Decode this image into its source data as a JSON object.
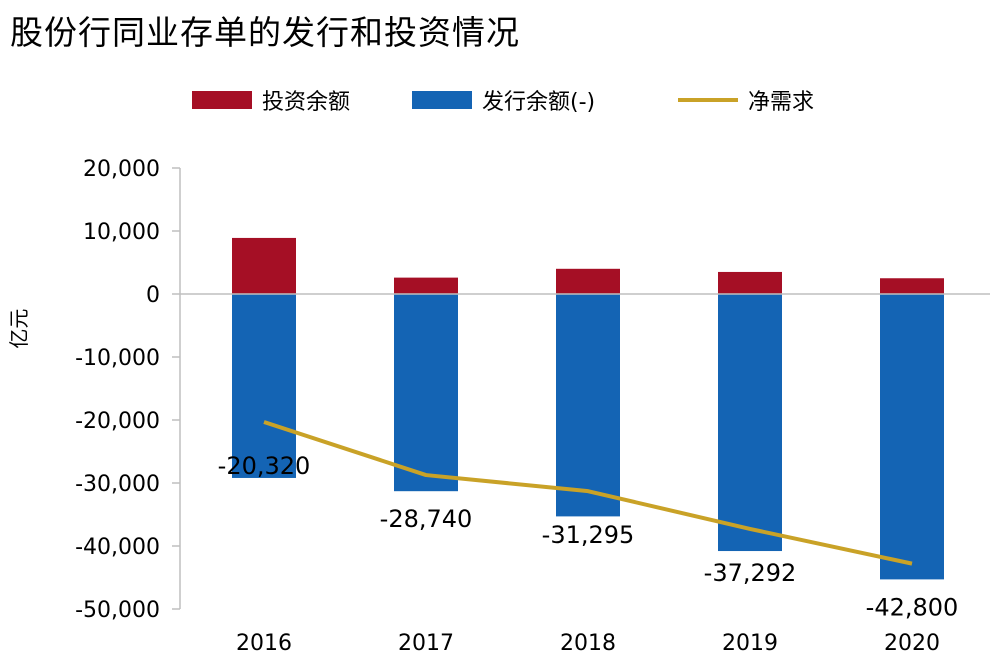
{
  "colors": {
    "invest": "#a50f25",
    "issue": "#1464b4",
    "net": "#c9a227",
    "axis": "#bfbfbf"
  },
  "chart_data": {
    "type": "bar",
    "title": "股份行同业存单的发行和投资情况",
    "ylabel": "亿元",
    "categories": [
      "2016",
      "2017",
      "2018",
      "2019",
      "2020"
    ],
    "ylim": [
      -50000,
      20000
    ],
    "yticks": [
      20000,
      10000,
      0,
      -10000,
      -20000,
      -30000,
      -40000,
      -50000
    ],
    "ytick_labels": [
      "20,000",
      "10,000",
      "0",
      "-10,000",
      "-20,000",
      "-30,000",
      "-40,000",
      "-50,000"
    ],
    "legend_position": "top",
    "grid": false,
    "series": [
      {
        "name": "投资余额",
        "kind": "bar",
        "color_key": "invest",
        "values": [
          8900,
          2600,
          4000,
          3500,
          2500
        ]
      },
      {
        "name": "发行余额(-)",
        "kind": "bar",
        "color_key": "issue",
        "values": [
          -29200,
          -31300,
          -35300,
          -40800,
          -45300
        ]
      },
      {
        "name": "净需求",
        "kind": "line",
        "color_key": "net",
        "values": [
          -20320,
          -28740,
          -31295,
          -37292,
          -42800
        ],
        "data_labels": [
          "-20,320",
          "-28,740",
          "-31,295",
          "-37,292",
          "-42,800"
        ]
      }
    ]
  }
}
